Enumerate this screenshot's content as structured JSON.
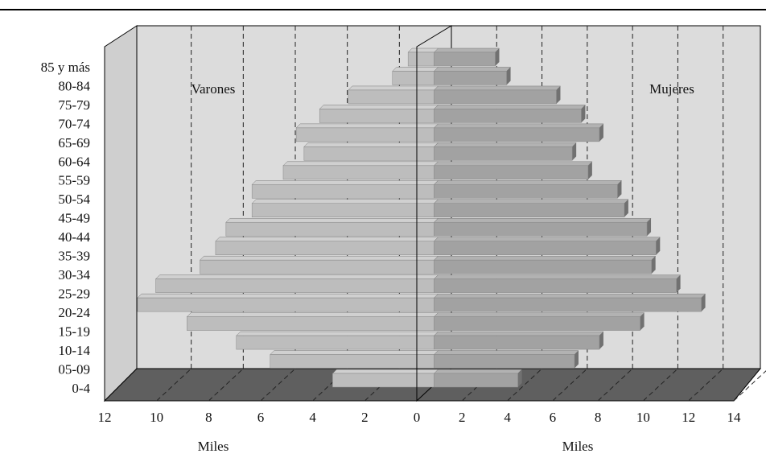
{
  "chart_data": {
    "type": "pyramid",
    "categories": [
      "85 y más",
      "80-84",
      "75-79",
      "70-74",
      "65-69",
      "60-64",
      "55-59",
      "50-54",
      "45-49",
      "40-44",
      "35-39",
      "30-34",
      "25-29",
      "20-24",
      "15-19",
      "10-14",
      "05-09",
      "0-4"
    ],
    "series": [
      {
        "name": "Varones",
        "color": "#bdbdbd",
        "xlabel": "Miles",
        "xlim": [
          0,
          12
        ],
        "xticks": [
          12,
          10,
          8,
          6,
          4,
          2,
          0
        ],
        "values": [
          1.0,
          1.6,
          3.3,
          4.4,
          5.3,
          5.0,
          5.8,
          7.0,
          7.0,
          8.0,
          8.4,
          9.0,
          10.7,
          11.4,
          9.5,
          7.6,
          6.3,
          3.9
        ]
      },
      {
        "name": "Mujeres",
        "color": "#a2a2a2",
        "xlabel": "Miles",
        "xlim": [
          0,
          14
        ],
        "xticks": [
          2,
          4,
          6,
          8,
          10,
          12,
          14
        ],
        "values": [
          2.7,
          3.2,
          5.4,
          6.5,
          7.3,
          6.1,
          6.8,
          8.1,
          8.4,
          9.4,
          9.8,
          9.6,
          10.7,
          11.8,
          9.1,
          7.3,
          6.2,
          3.7
        ]
      }
    ],
    "grid": true
  }
}
